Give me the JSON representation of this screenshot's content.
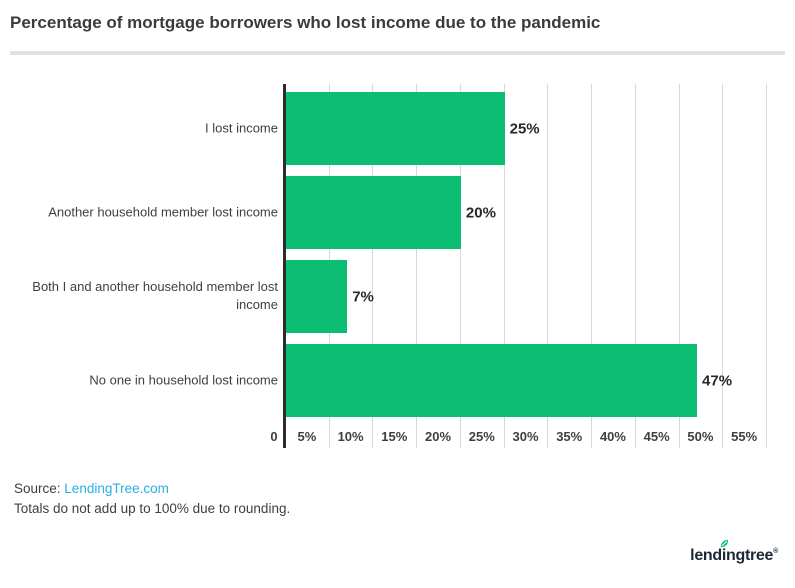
{
  "title": "Percentage of mortgage borrowers who lost income due to the pandemic",
  "chart_data": {
    "type": "bar",
    "orientation": "horizontal",
    "title": "Percentage of mortgage borrowers who lost income due to the pandemic",
    "categories": [
      "I lost income",
      "Another household member lost income",
      "Both I and another household member lost income",
      "No one in household lost income"
    ],
    "values": [
      25,
      20,
      7,
      47
    ],
    "value_labels": [
      "25%",
      "20%",
      "7%",
      "47%"
    ],
    "x_ticks": [
      "0",
      "5%",
      "10%",
      "15%",
      "20%",
      "25%",
      "30%",
      "35%",
      "40%",
      "45%",
      "50%",
      "55%"
    ],
    "xlim": [
      0,
      55
    ],
    "grid": true,
    "legend": "none",
    "bar_color": "#0cbe72"
  },
  "footer": {
    "source_label": "Source:",
    "source_link": "LendingTree.com",
    "note": "Totals do not add up to 100% due to rounding."
  },
  "logo": {
    "text": "lendingtree",
    "registered_mark": "®"
  },
  "colors": {
    "bar": "#0cbe72",
    "axis_line": "#2d2d2d",
    "gridline": "#d9d9d9",
    "title_text": "#3b3b3b",
    "label_text": "#3f3f3f",
    "value_text": "#282828",
    "source_link": "#29b0e3",
    "divider": "#e2e2e2",
    "logo_text": "#1b2939",
    "logo_leaf": "#08c177"
  }
}
